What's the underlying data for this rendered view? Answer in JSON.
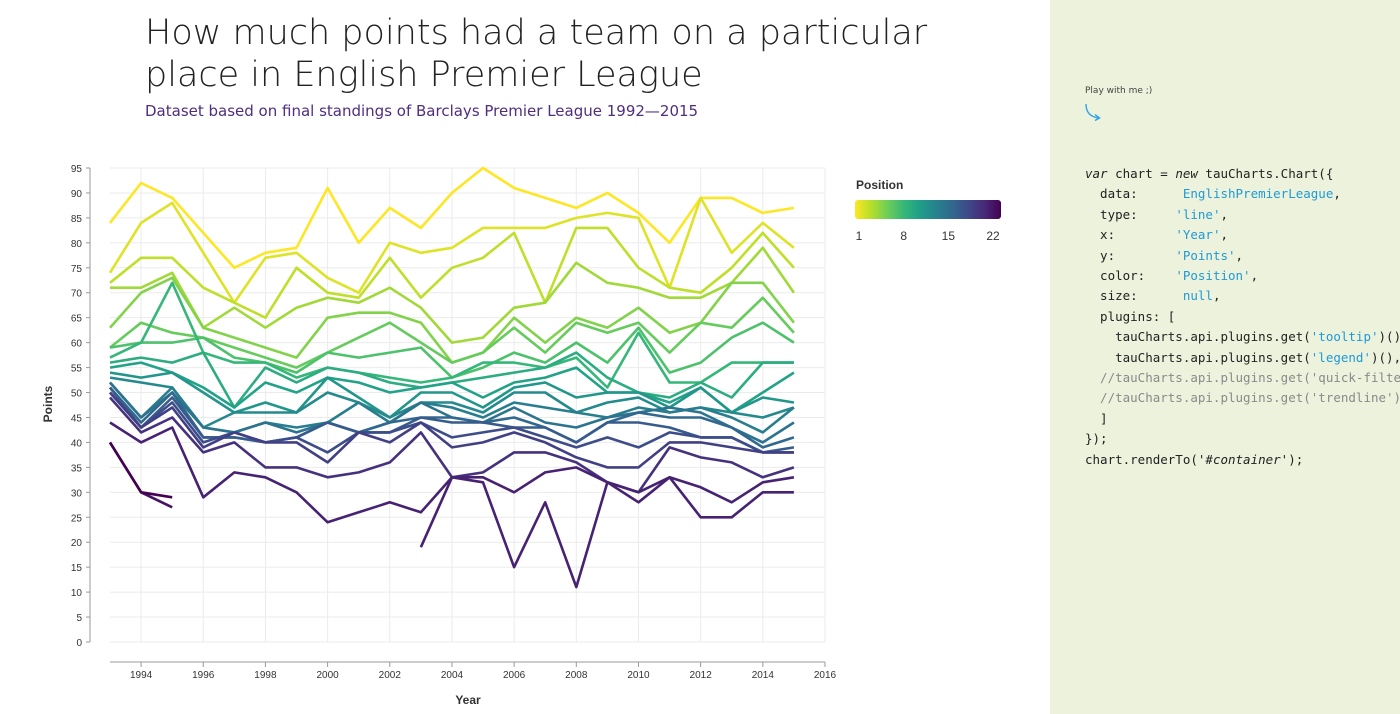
{
  "title": "How much points had a team on a particular place in English Premier League",
  "subtitle": "Dataset based on final standings of Barclays Premier League 1992—2015",
  "sidebar": {
    "play_label": "Play with me ;)",
    "code": {
      "l1a": "var",
      "l1b": " chart = ",
      "l1c": "new",
      "l1d": " tauCharts.Chart({",
      "l2a": "  data:      ",
      "l2b": "EnglishPremierLeague",
      "l2c": ",",
      "l3a": "  type:     ",
      "l3b": "'line'",
      "l3c": ",",
      "l4a": "  x:        ",
      "l4b": "'Year'",
      "l4c": ",",
      "l5a": "  y:        ",
      "l5b": "'Points'",
      "l5c": ",",
      "l6a": "  color:    ",
      "l6b": "'Position'",
      "l6c": ",",
      "l7a": "  size:      ",
      "l7b": "null",
      "l7c": ",",
      "l8": "  plugins: [",
      "l9a": "    tauCharts.api.plugins.get(",
      "l9b": "'tooltip'",
      "l9c": ")(),",
      "l10a": "    tauCharts.api.plugins.get(",
      "l10b": "'legend'",
      "l10c": ")(),",
      "l11": "  //tauCharts.api.plugins.get('quick-filter')(),",
      "l12": "  //tauCharts.api.plugins.get('trendline')(),",
      "l13": "  ]",
      "l14": "});",
      "l15a": "chart.renderTo(",
      "l15b": "'#container'",
      "l15c": ");"
    },
    "colors": {
      "background": "#ecf2dc",
      "string": "#1f9ad6"
    }
  },
  "chart_data": {
    "type": "line",
    "xlabel": "Year",
    "ylabel": "Points",
    "xlim": [
      1993,
      2016
    ],
    "ylim": [
      0,
      95
    ],
    "x_ticks": [
      1994,
      1996,
      1998,
      2000,
      2002,
      2004,
      2006,
      2008,
      2010,
      2012,
      2014,
      2016
    ],
    "y_ticks": [
      0,
      5,
      10,
      15,
      20,
      25,
      30,
      35,
      40,
      45,
      50,
      55,
      60,
      65,
      70,
      75,
      80,
      85,
      90,
      95
    ],
    "grid": true,
    "legend": {
      "title": "Position",
      "placement": "right",
      "ticks": [
        1,
        8,
        15,
        22
      ],
      "colors": [
        "#fde725",
        "#b5de2b",
        "#6ece58",
        "#35b779",
        "#1f9e89",
        "#26828e",
        "#31688e",
        "#3e4989",
        "#482878",
        "#440154"
      ]
    },
    "years": [
      1993,
      1994,
      1995,
      1996,
      1997,
      1998,
      1999,
      2000,
      2001,
      2002,
      2003,
      2004,
      2005,
      2006,
      2007,
      2008,
      2009,
      2010,
      2011,
      2012,
      2013,
      2014,
      2015
    ],
    "series": [
      {
        "position": 1,
        "values": [
          84,
          92,
          89,
          82,
          75,
          78,
          79,
          91,
          80,
          87,
          83,
          90,
          95,
          91,
          89,
          87,
          90,
          86,
          80,
          89,
          89,
          86,
          87
        ]
      },
      {
        "position": 2,
        "values": [
          74,
          84,
          88,
          78,
          68,
          77,
          78,
          73,
          70,
          80,
          78,
          79,
          83,
          83,
          83,
          85,
          86,
          85,
          71,
          89,
          78,
          84,
          79
        ]
      },
      {
        "position": 3,
        "values": [
          72,
          77,
          77,
          71,
          68,
          65,
          75,
          70,
          69,
          77,
          69,
          75,
          77,
          82,
          68,
          83,
          83,
          75,
          71,
          70,
          75,
          82,
          75
        ]
      },
      {
        "position": 4,
        "values": [
          71,
          71,
          74,
          63,
          67,
          63,
          67,
          69,
          68,
          71,
          67,
          60,
          61,
          67,
          68,
          76,
          72,
          71,
          69,
          69,
          72,
          79,
          70
        ]
      },
      {
        "position": 5,
        "values": [
          63,
          70,
          73,
          63,
          61,
          59,
          57,
          65,
          66,
          66,
          64,
          56,
          58,
          65,
          60,
          65,
          63,
          67,
          62,
          64,
          72,
          72,
          64
        ]
      },
      {
        "position": 6,
        "values": [
          59,
          64,
          62,
          61,
          59,
          57,
          55,
          58,
          61,
          64,
          60,
          56,
          58,
          63,
          58,
          64,
          62,
          64,
          58,
          64,
          63,
          69,
          62
        ]
      },
      {
        "position": 7,
        "values": [
          59,
          60,
          60,
          61,
          57,
          56,
          54,
          58,
          57,
          58,
          59,
          53,
          55,
          58,
          56,
          60,
          56,
          63,
          54,
          56,
          61,
          64,
          60
        ]
      },
      {
        "position": 8,
        "values": [
          57,
          60,
          72,
          58,
          56,
          56,
          53,
          55,
          54,
          53,
          52,
          53,
          56,
          56,
          55,
          57,
          51,
          62,
          52,
          52,
          56,
          56,
          56
        ]
      },
      {
        "position": 9,
        "values": [
          56,
          57,
          56,
          58,
          47,
          55,
          52,
          55,
          54,
          52,
          51,
          52,
          53,
          54,
          55,
          58,
          53,
          50,
          49,
          52,
          49,
          56,
          56
        ]
      },
      {
        "position": 10,
        "values": [
          55,
          56,
          54,
          51,
          47,
          52,
          50,
          53,
          52,
          50,
          51,
          52,
          49,
          52,
          53,
          55,
          50,
          50,
          48,
          51,
          46,
          50,
          54
        ]
      },
      {
        "position": 11,
        "values": [
          54,
          53,
          54,
          50,
          46,
          48,
          46,
          53,
          49,
          45,
          50,
          50,
          47,
          51,
          52,
          49,
          50,
          50,
          47,
          51,
          46,
          49,
          48
        ]
      },
      {
        "position": 12,
        "values": [
          53,
          52,
          51,
          43,
          46,
          46,
          46,
          50,
          48,
          45,
          48,
          48,
          46,
          50,
          50,
          46,
          48,
          49,
          46,
          47,
          46,
          45,
          47
        ]
      },
      {
        "position": 13,
        "values": [
          52,
          45,
          51,
          43,
          42,
          44,
          43,
          44,
          48,
          44,
          48,
          47,
          45,
          48,
          47,
          46,
          45,
          47,
          46,
          47,
          45,
          42,
          47
        ]
      },
      {
        "position": 14,
        "values": [
          52,
          45,
          50,
          43,
          42,
          44,
          42,
          44,
          42,
          44,
          48,
          45,
          44,
          47,
          44,
          43,
          45,
          46,
          47,
          46,
          43,
          40,
          44
        ]
      },
      {
        "position": 15,
        "values": [
          51,
          44,
          50,
          41,
          41,
          40,
          41,
          44,
          42,
          44,
          45,
          45,
          44,
          45,
          43,
          40,
          44,
          46,
          45,
          45,
          43,
          39,
          41
        ]
      },
      {
        "position": 16,
        "values": [
          51,
          43,
          49,
          41,
          41,
          40,
          41,
          44,
          42,
          42,
          45,
          44,
          44,
          43,
          43,
          40,
          44,
          44,
          43,
          41,
          41,
          38,
          39
        ]
      },
      {
        "position": 17,
        "values": [
          50,
          43,
          48,
          40,
          42,
          40,
          41,
          38,
          42,
          42,
          44,
          41,
          42,
          43,
          41,
          39,
          41,
          39,
          42,
          41,
          41,
          38,
          38
        ]
      },
      {
        "position": 18,
        "values": [
          50,
          43,
          47,
          39,
          42,
          40,
          40,
          36,
          42,
          40,
          44,
          39,
          40,
          42,
          40,
          37,
          35,
          35,
          40,
          40,
          39,
          38,
          38
        ]
      },
      {
        "position": 19,
        "values": [
          49,
          42,
          45,
          38,
          40,
          35,
          35,
          33,
          34,
          36,
          42,
          33,
          34,
          38,
          38,
          36,
          32,
          30,
          39,
          37,
          36,
          33,
          35
        ]
      },
      {
        "position": 20,
        "values": [
          44,
          40,
          43,
          29,
          34,
          33,
          30,
          24,
          26,
          28,
          26,
          33,
          33,
          30,
          34,
          35,
          32,
          30,
          33,
          31,
          28,
          32,
          33
        ]
      },
      {
        "position": 21,
        "values": [
          40,
          30,
          27
        ]
      },
      {
        "position": 22,
        "values": [
          40,
          30,
          29
        ]
      },
      {
        "position": 20,
        "values": [
          null,
          null,
          null,
          null,
          null,
          null,
          null,
          null,
          null,
          null,
          19,
          33,
          32,
          15,
          28,
          11,
          32,
          28,
          33,
          25,
          25,
          30,
          30
        ]
      }
    ]
  }
}
